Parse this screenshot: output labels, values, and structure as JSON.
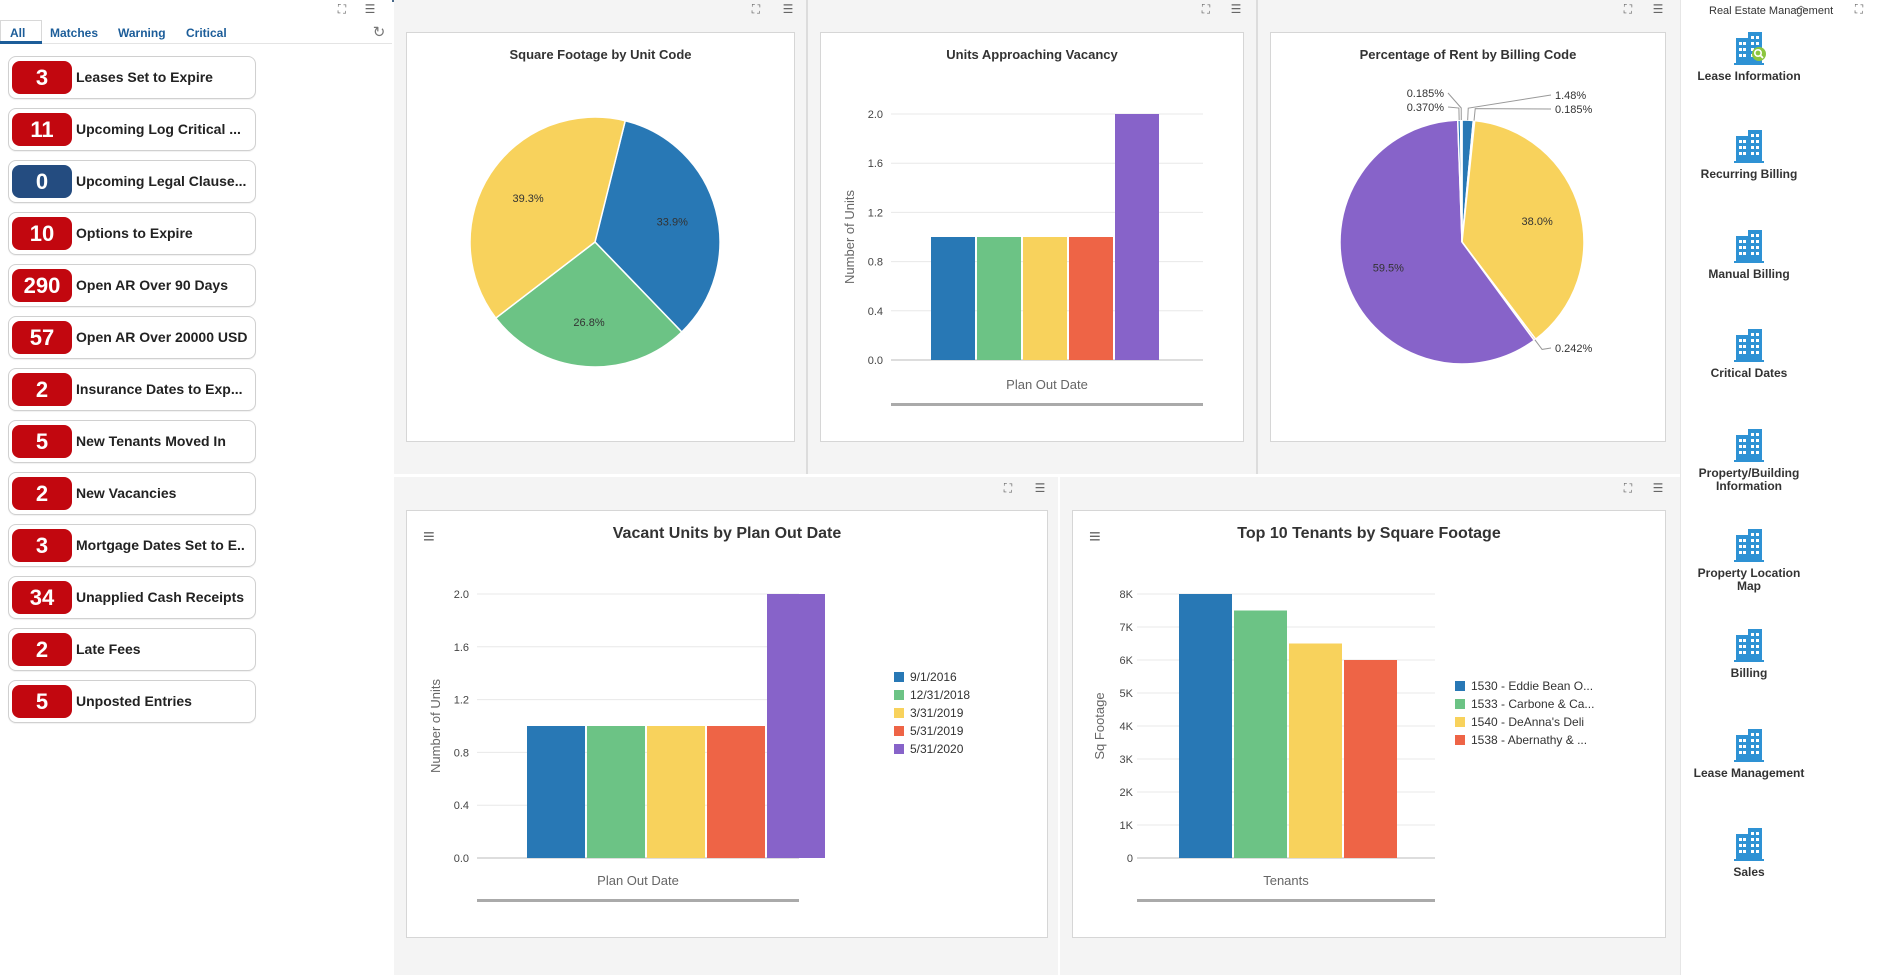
{
  "watchlist": {
    "tabs": [
      "All",
      "Matches",
      "Warning",
      "Critical"
    ],
    "items": [
      {
        "count": "3",
        "label": "Leases Set to Expire",
        "color": "#c2070f"
      },
      {
        "count": "11",
        "label": "Upcoming Log Critical ...",
        "color": "#c2070f"
      },
      {
        "count": "0",
        "label": "Upcoming Legal Clause...",
        "color": "#244c80"
      },
      {
        "count": "10",
        "label": "Options to Expire",
        "color": "#c2070f"
      },
      {
        "count": "290",
        "label": "Open AR Over 90 Days",
        "color": "#c2070f"
      },
      {
        "count": "57",
        "label": "Open AR Over 20000 USD",
        "color": "#c2070f"
      },
      {
        "count": "2",
        "label": "Insurance Dates to Exp...",
        "color": "#c2070f"
      },
      {
        "count": "5",
        "label": "New Tenants Moved In",
        "color": "#c2070f"
      },
      {
        "count": "2",
        "label": "New Vacancies",
        "color": "#c2070f"
      },
      {
        "count": "3",
        "label": "Mortgage Dates Set to E..",
        "color": "#c2070f"
      },
      {
        "count": "34",
        "label": "Unapplied Cash Receipts",
        "color": "#c2070f"
      },
      {
        "count": "2",
        "label": "Late Fees",
        "color": "#c2070f"
      },
      {
        "count": "5",
        "label": "Unposted Entries",
        "color": "#c2070f"
      }
    ]
  },
  "palette": [
    "#2878b5",
    "#6cc385",
    "#f8d25c",
    "#ee6446",
    "#8763c9"
  ],
  "chart_data": [
    {
      "type": "pie",
      "title": "Square Footage by Unit Code",
      "slices": [
        {
          "label": "33.9%",
          "value": 33.9
        },
        {
          "label": "26.8%",
          "value": 26.8
        },
        {
          "label": "39.3%",
          "value": 39.3
        }
      ],
      "colors": [
        "#2878b5",
        "#6cc385",
        "#f8d25c"
      ]
    },
    {
      "type": "bar",
      "title": "Units Approaching Vacancy",
      "xlabel": "Plan Out Date",
      "ylabel": "Number of Units",
      "ylim": [
        0,
        2.0
      ],
      "yticks": [
        "0.0",
        "0.4",
        "0.8",
        "1.2",
        "1.6",
        "2.0"
      ],
      "values": [
        1,
        1,
        1,
        1,
        2
      ]
    },
    {
      "type": "pie",
      "title": "Percentage of Rent by Billing Code",
      "slices": [
        {
          "label": "1.48%",
          "value": 1.48
        },
        {
          "label": "0.185%",
          "value": 0.185
        },
        {
          "label": "38.0%",
          "value": 38.0
        },
        {
          "label": "0.242%",
          "value": 0.242
        },
        {
          "label": "59.5%",
          "value": 59.5
        },
        {
          "label": "0.370%",
          "value": 0.37
        },
        {
          "label": "0.185%",
          "value": 0.185
        }
      ],
      "colors": [
        "#2878b5",
        "#6cc385",
        "#f8d25c",
        "#ee6446",
        "#8763c9",
        "#2878b5",
        "#6cc385"
      ]
    },
    {
      "type": "bar",
      "title": "Vacant Units by Plan Out Date",
      "xlabel": "Plan Out Date",
      "ylabel": "Number of Units",
      "ylim": [
        0,
        2.0
      ],
      "yticks": [
        "0.0",
        "0.4",
        "0.8",
        "1.2",
        "1.6",
        "2.0"
      ],
      "series": [
        {
          "name": "9/1/2016",
          "value": 1
        },
        {
          "name": "12/31/2018",
          "value": 1
        },
        {
          "name": "3/31/2019",
          "value": 1
        },
        {
          "name": "5/31/2019",
          "value": 1
        },
        {
          "name": "5/31/2020",
          "value": 2
        }
      ],
      "legend": "right"
    },
    {
      "type": "bar",
      "title": "Top 10 Tenants by Square Footage",
      "xlabel": "Tenants",
      "ylabel": "Sq Footage",
      "ylim": [
        0,
        8000
      ],
      "yticks": [
        "0",
        "1K",
        "2K",
        "3K",
        "4K",
        "5K",
        "6K",
        "7K",
        "8K"
      ],
      "series": [
        {
          "name": "1530 - Eddie Bean O...",
          "value": 8000
        },
        {
          "name": "1533 - Carbone & Ca...",
          "value": 7500
        },
        {
          "name": "1540 - DeAnna's Deli",
          "value": 6500
        },
        {
          "name": "1538 - Abernathy & ...",
          "value": 6000
        }
      ],
      "legend": "right"
    }
  ],
  "rightnav": {
    "title": "Real Estate Management",
    "items": [
      {
        "label": "Lease Information",
        "accent": true
      },
      {
        "label": "Recurring Billing"
      },
      {
        "label": "Manual Billing"
      },
      {
        "label": "Critical Dates"
      },
      {
        "label": "Property/Building Information"
      },
      {
        "label": "Property Location Map"
      },
      {
        "label": "Billing"
      },
      {
        "label": "Lease Management"
      },
      {
        "label": "Sales"
      }
    ]
  }
}
